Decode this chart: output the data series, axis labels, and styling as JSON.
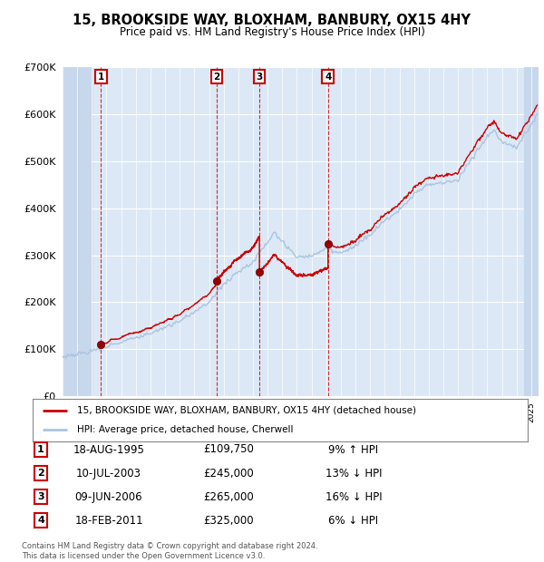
{
  "title": "15, BROOKSIDE WAY, BLOXHAM, BANBURY, OX15 4HY",
  "subtitle": "Price paid vs. HM Land Registry's House Price Index (HPI)",
  "ylim": [
    0,
    700000
  ],
  "yticks": [
    0,
    100000,
    200000,
    300000,
    400000,
    500000,
    600000,
    700000
  ],
  "xlim_start": 1993.0,
  "xlim_end": 2025.5,
  "hatch_end_year": 1995.0,
  "hatch_start_year": 2024.5,
  "sale_dates": [
    1995.62,
    2003.52,
    2006.44,
    2011.12
  ],
  "sale_prices": [
    109750,
    245000,
    265000,
    325000
  ],
  "sale_labels": [
    "1",
    "2",
    "3",
    "4"
  ],
  "sale_info": [
    {
      "label": "1",
      "date": "18-AUG-1995",
      "price": "£109,750",
      "hpi": "9% ↑ HPI"
    },
    {
      "label": "2",
      "date": "10-JUL-2003",
      "price": "£245,000",
      "hpi": "13% ↓ HPI"
    },
    {
      "label": "3",
      "date": "09-JUN-2006",
      "price": "£265,000",
      "hpi": "16% ↓ HPI"
    },
    {
      "label": "4",
      "date": "18-FEB-2011",
      "price": "£325,000",
      "hpi": "6% ↓ HPI"
    }
  ],
  "legend_line1": "15, BROOKSIDE WAY, BLOXHAM, BANBURY, OX15 4HY (detached house)",
  "legend_line2": "HPI: Average price, detached house, Cherwell",
  "footer1": "Contains HM Land Registry data © Crown copyright and database right 2024.",
  "footer2": "This data is licensed under the Open Government Licence v3.0.",
  "line_color_red": "#cc0000",
  "line_color_blue": "#aac4e0",
  "background_color": "#dce8f5",
  "hatch_color": "#c8d8ec",
  "grid_color": "#b0c4d8",
  "dot_color": "#990000"
}
